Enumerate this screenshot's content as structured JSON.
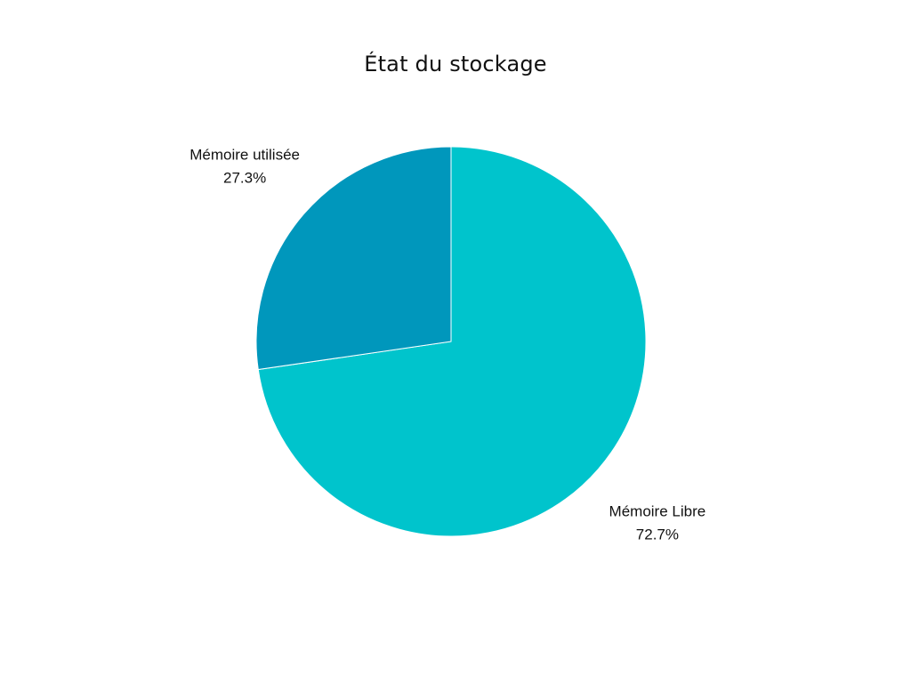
{
  "chart_data": {
    "type": "pie",
    "title": "État du stockage",
    "slices": [
      {
        "label": "Mémoire Libre",
        "value": 72.7,
        "percent_label": "72.7%",
        "color": "#00C4CC"
      },
      {
        "label": "Mémoire utilisée",
        "value": 27.3,
        "percent_label": "27.3%",
        "color": "#0097BC"
      }
    ],
    "start_angle": "12 o'clock",
    "direction": "clockwise"
  },
  "colors": {
    "background": "#ffffff",
    "slice_separator": "#ffffff"
  }
}
